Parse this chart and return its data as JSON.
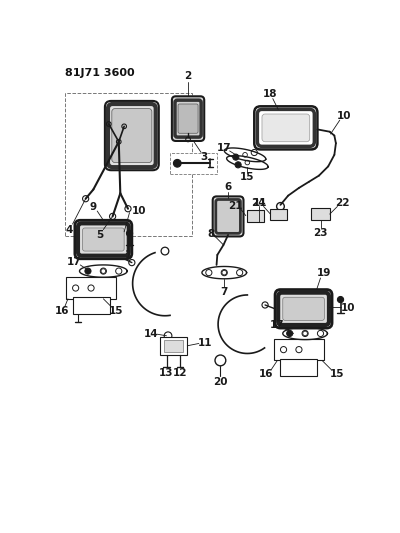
{
  "title": "81J71 3600",
  "bg_color": "#ffffff",
  "lc": "#1a1a1a",
  "fig_width": 4.0,
  "fig_height": 5.33,
  "dpi": 100
}
